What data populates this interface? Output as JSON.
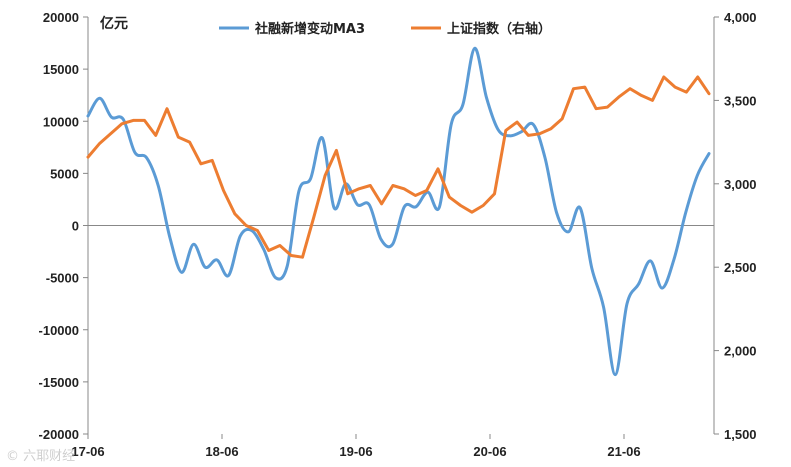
{
  "chart_data": {
    "type": "line",
    "unit_label": "亿元",
    "legend_position": "top-center",
    "grid": false,
    "x_ticks": [
      "17-06",
      "18-06",
      "19-06",
      "20-06",
      "21-06"
    ],
    "y_left": {
      "min": -20000,
      "max": 20000,
      "step": 5000,
      "ticks": [
        "20000",
        "15000",
        "10000",
        "5000",
        "0",
        "-5000",
        "-10000",
        "-15000",
        "-20000"
      ]
    },
    "y_right": {
      "min": 1500,
      "max": 4000,
      "step": 500,
      "ticks": [
        "4,000",
        "3,500",
        "3,000",
        "2,500",
        "2,000",
        "1,500"
      ]
    },
    "series": [
      {
        "name": "社融新增变动MA3",
        "axis": "left",
        "color": "#5B9BD5",
        "values": [
          10500,
          12200,
          10400,
          10200,
          7000,
          6500,
          3800,
          -1200,
          -4500,
          -1800,
          -4000,
          -3300,
          -4800,
          -1000,
          -500,
          -2300,
          -5000,
          -3900,
          3300,
          4500,
          8400,
          1700,
          4000,
          2000,
          2000,
          -1300,
          -1800,
          1800,
          1800,
          3200,
          1800,
          9700,
          11600,
          17000,
          12300,
          9200,
          8600,
          9000,
          9700,
          6500,
          1200,
          -600,
          1700,
          -4100,
          -7800,
          -14300,
          -7500,
          -5600,
          -3400,
          -6000,
          -3300,
          1200,
          4800,
          6900
        ]
      },
      {
        "name": "上证指数（右轴）",
        "axis": "right",
        "color": "#ED7D31",
        "values": [
          3160,
          3240,
          3300,
          3360,
          3380,
          3380,
          3290,
          3450,
          3280,
          3250,
          3120,
          3140,
          2960,
          2820,
          2750,
          2720,
          2600,
          2630,
          2570,
          2560,
          2800,
          3050,
          3200,
          2940,
          2970,
          2990,
          2880,
          2990,
          2970,
          2930,
          2960,
          3090,
          2920,
          2870,
          2830,
          2870,
          2940,
          3320,
          3370,
          3290,
          3300,
          3330,
          3390,
          3570,
          3580,
          3450,
          3460,
          3520,
          3570,
          3530,
          3500,
          3640,
          3580,
          3550,
          3640,
          3540
        ]
      }
    ]
  },
  "watermark": "© 六耶财经"
}
